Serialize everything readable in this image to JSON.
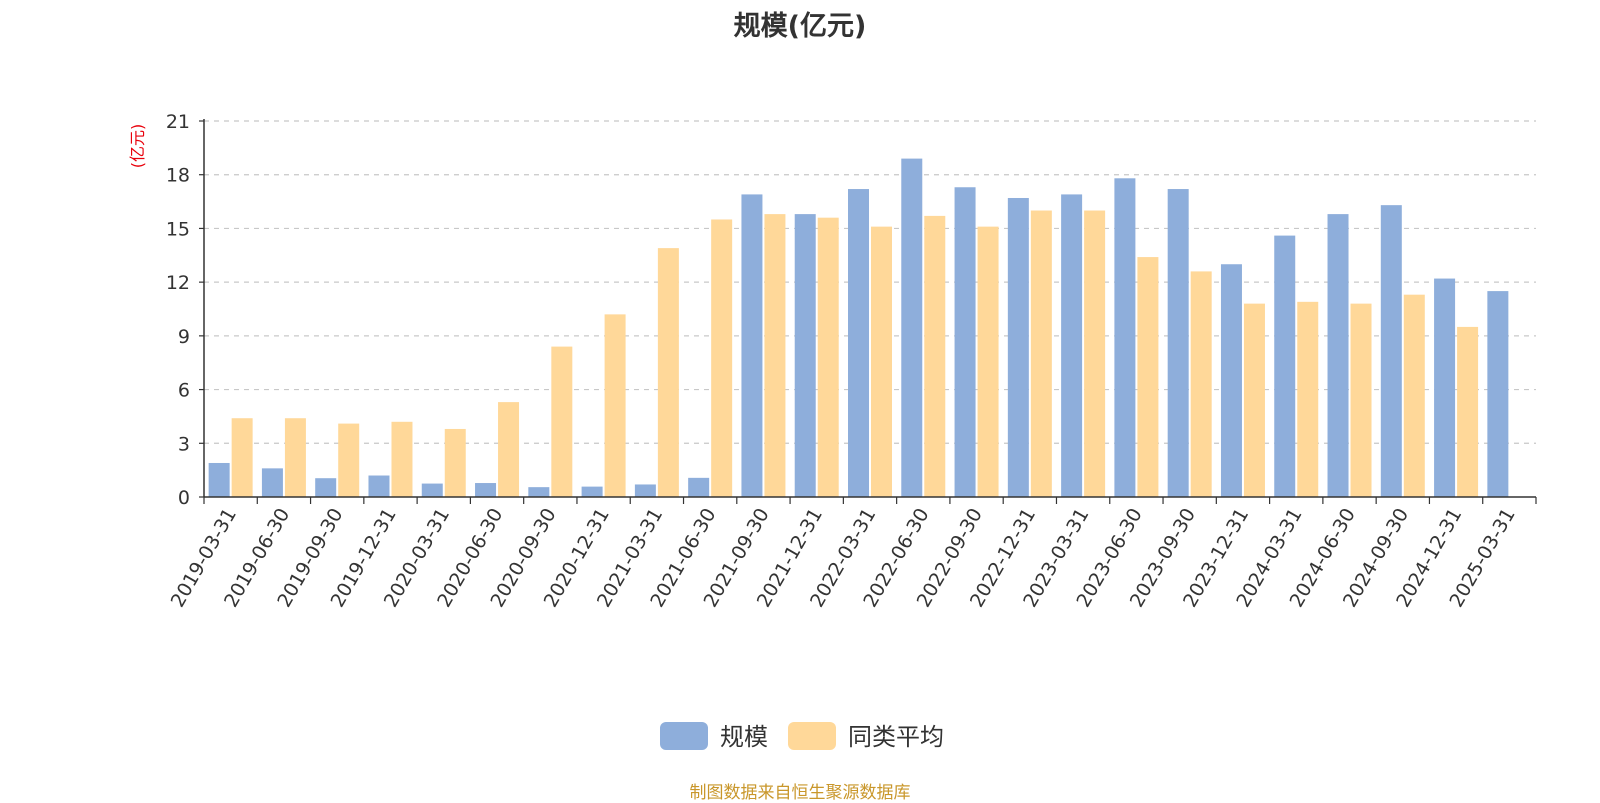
{
  "chart_data": {
    "type": "bar",
    "title": "规模(亿元)",
    "y_unit": "(亿元)",
    "ylim": [
      0,
      21
    ],
    "y_ticks": [
      0,
      3,
      6,
      9,
      12,
      15,
      18,
      21
    ],
    "grid": true,
    "legend_position": "bottom",
    "categories": [
      "2019-03-31",
      "2019-06-30",
      "2019-09-30",
      "2019-12-31",
      "2020-03-31",
      "2020-06-30",
      "2020-09-30",
      "2020-12-31",
      "2021-03-31",
      "2021-06-30",
      "2021-09-30",
      "2021-12-31",
      "2022-03-31",
      "2022-06-30",
      "2022-09-30",
      "2022-12-31",
      "2023-03-31",
      "2023-06-30",
      "2023-09-30",
      "2023-12-31",
      "2024-03-31",
      "2024-06-30",
      "2024-09-30",
      "2024-12-31",
      "2025-03-31"
    ],
    "series": [
      {
        "name": "规模",
        "color": "#8eaedb",
        "values": [
          1.9,
          1.6,
          1.05,
          1.2,
          0.75,
          0.78,
          0.55,
          0.58,
          0.7,
          1.07,
          16.9,
          15.8,
          17.2,
          18.9,
          17.3,
          16.7,
          16.9,
          17.8,
          17.2,
          13.0,
          14.6,
          15.8,
          16.3,
          12.2,
          11.5
        ]
      },
      {
        "name": "同类平均",
        "color": "#ffd899",
        "values": [
          4.4,
          4.4,
          4.1,
          4.2,
          3.8,
          5.3,
          8.4,
          10.2,
          13.9,
          15.5,
          15.8,
          15.6,
          15.1,
          15.7,
          15.1,
          16.0,
          16.0,
          13.4,
          12.6,
          10.8,
          10.9,
          10.8,
          11.3,
          9.5,
          null
        ]
      }
    ]
  },
  "footer": {
    "source": "制图数据来自恒生聚源数据库"
  }
}
